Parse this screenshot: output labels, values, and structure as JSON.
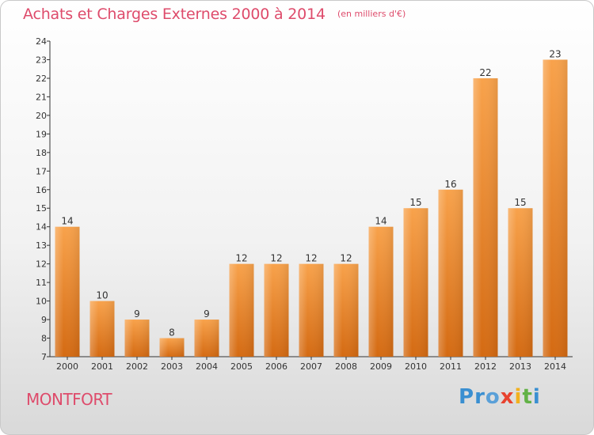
{
  "header": {
    "title": "Achats et Charges Externes 2000 à 2014",
    "subtitle": "(en milliers d'€)"
  },
  "footer": {
    "commune": "MONTFORT",
    "brand": "Proxiti"
  },
  "colors": {
    "title": "#de4b6b",
    "bar_light": "#f7a04a",
    "bar_dark": "#d86f17",
    "axis": "#333333"
  },
  "chart_data": {
    "type": "bar",
    "categories": [
      "2000",
      "2001",
      "2002",
      "2003",
      "2004",
      "2005",
      "2006",
      "2007",
      "2008",
      "2009",
      "2010",
      "2011",
      "2012",
      "2013",
      "2014"
    ],
    "values": [
      14,
      10,
      9,
      8,
      9,
      12,
      12,
      12,
      12,
      14,
      15,
      16,
      22,
      15,
      23
    ],
    "title": "Achats et Charges Externes 2000 à 2014",
    "ylim": [
      7,
      24
    ],
    "yticks": [
      7,
      8,
      9,
      10,
      11,
      12,
      13,
      14,
      15,
      16,
      17,
      18,
      19,
      20,
      21,
      22,
      23,
      24
    ],
    "grid": false,
    "legend": "none"
  }
}
